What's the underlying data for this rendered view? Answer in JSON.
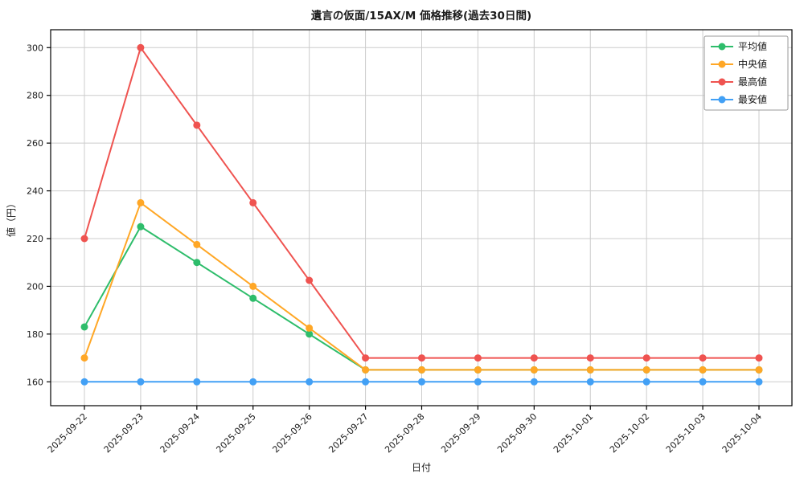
{
  "chart_data": {
    "type": "line",
    "title": "遺言の仮面/15AX/M 価格推移(過去30日間)",
    "xlabel": "日付",
    "ylabel": "値（円）",
    "x": [
      "2025-09-22",
      "2025-09-23",
      "2025-09-24",
      "2025-09-25",
      "2025-09-26",
      "2025-09-27",
      "2025-09-28",
      "2025-09-29",
      "2025-09-30",
      "2025-10-01",
      "2025-10-02",
      "2025-10-03",
      "2025-10-04"
    ],
    "yticks": [
      160,
      180,
      200,
      220,
      240,
      260,
      280,
      300
    ],
    "ylim": [
      150,
      307.5
    ],
    "grid": true,
    "legend_position": "upper right",
    "colors": {
      "grid": "#cccccc",
      "spine": "#000000",
      "legend_border": "#999999",
      "legend_bg": "#ffffff"
    },
    "series": [
      {
        "name": "平均値",
        "color": "#2ebd6b",
        "values": [
          183,
          225,
          210,
          195,
          180,
          165,
          165,
          165,
          165,
          165,
          165,
          165,
          165
        ]
      },
      {
        "name": "中央値",
        "color": "#ffa726",
        "values": [
          170,
          235,
          217.5,
          200,
          182.5,
          165,
          165,
          165,
          165,
          165,
          165,
          165,
          165
        ]
      },
      {
        "name": "最高値",
        "color": "#ef5350",
        "values": [
          220,
          300,
          267.5,
          235,
          202.5,
          170,
          170,
          170,
          170,
          170,
          170,
          170,
          170
        ]
      },
      {
        "name": "最安値",
        "color": "#42a0f5",
        "values": [
          160,
          160,
          160,
          160,
          160,
          160,
          160,
          160,
          160,
          160,
          160,
          160,
          160
        ]
      }
    ]
  }
}
